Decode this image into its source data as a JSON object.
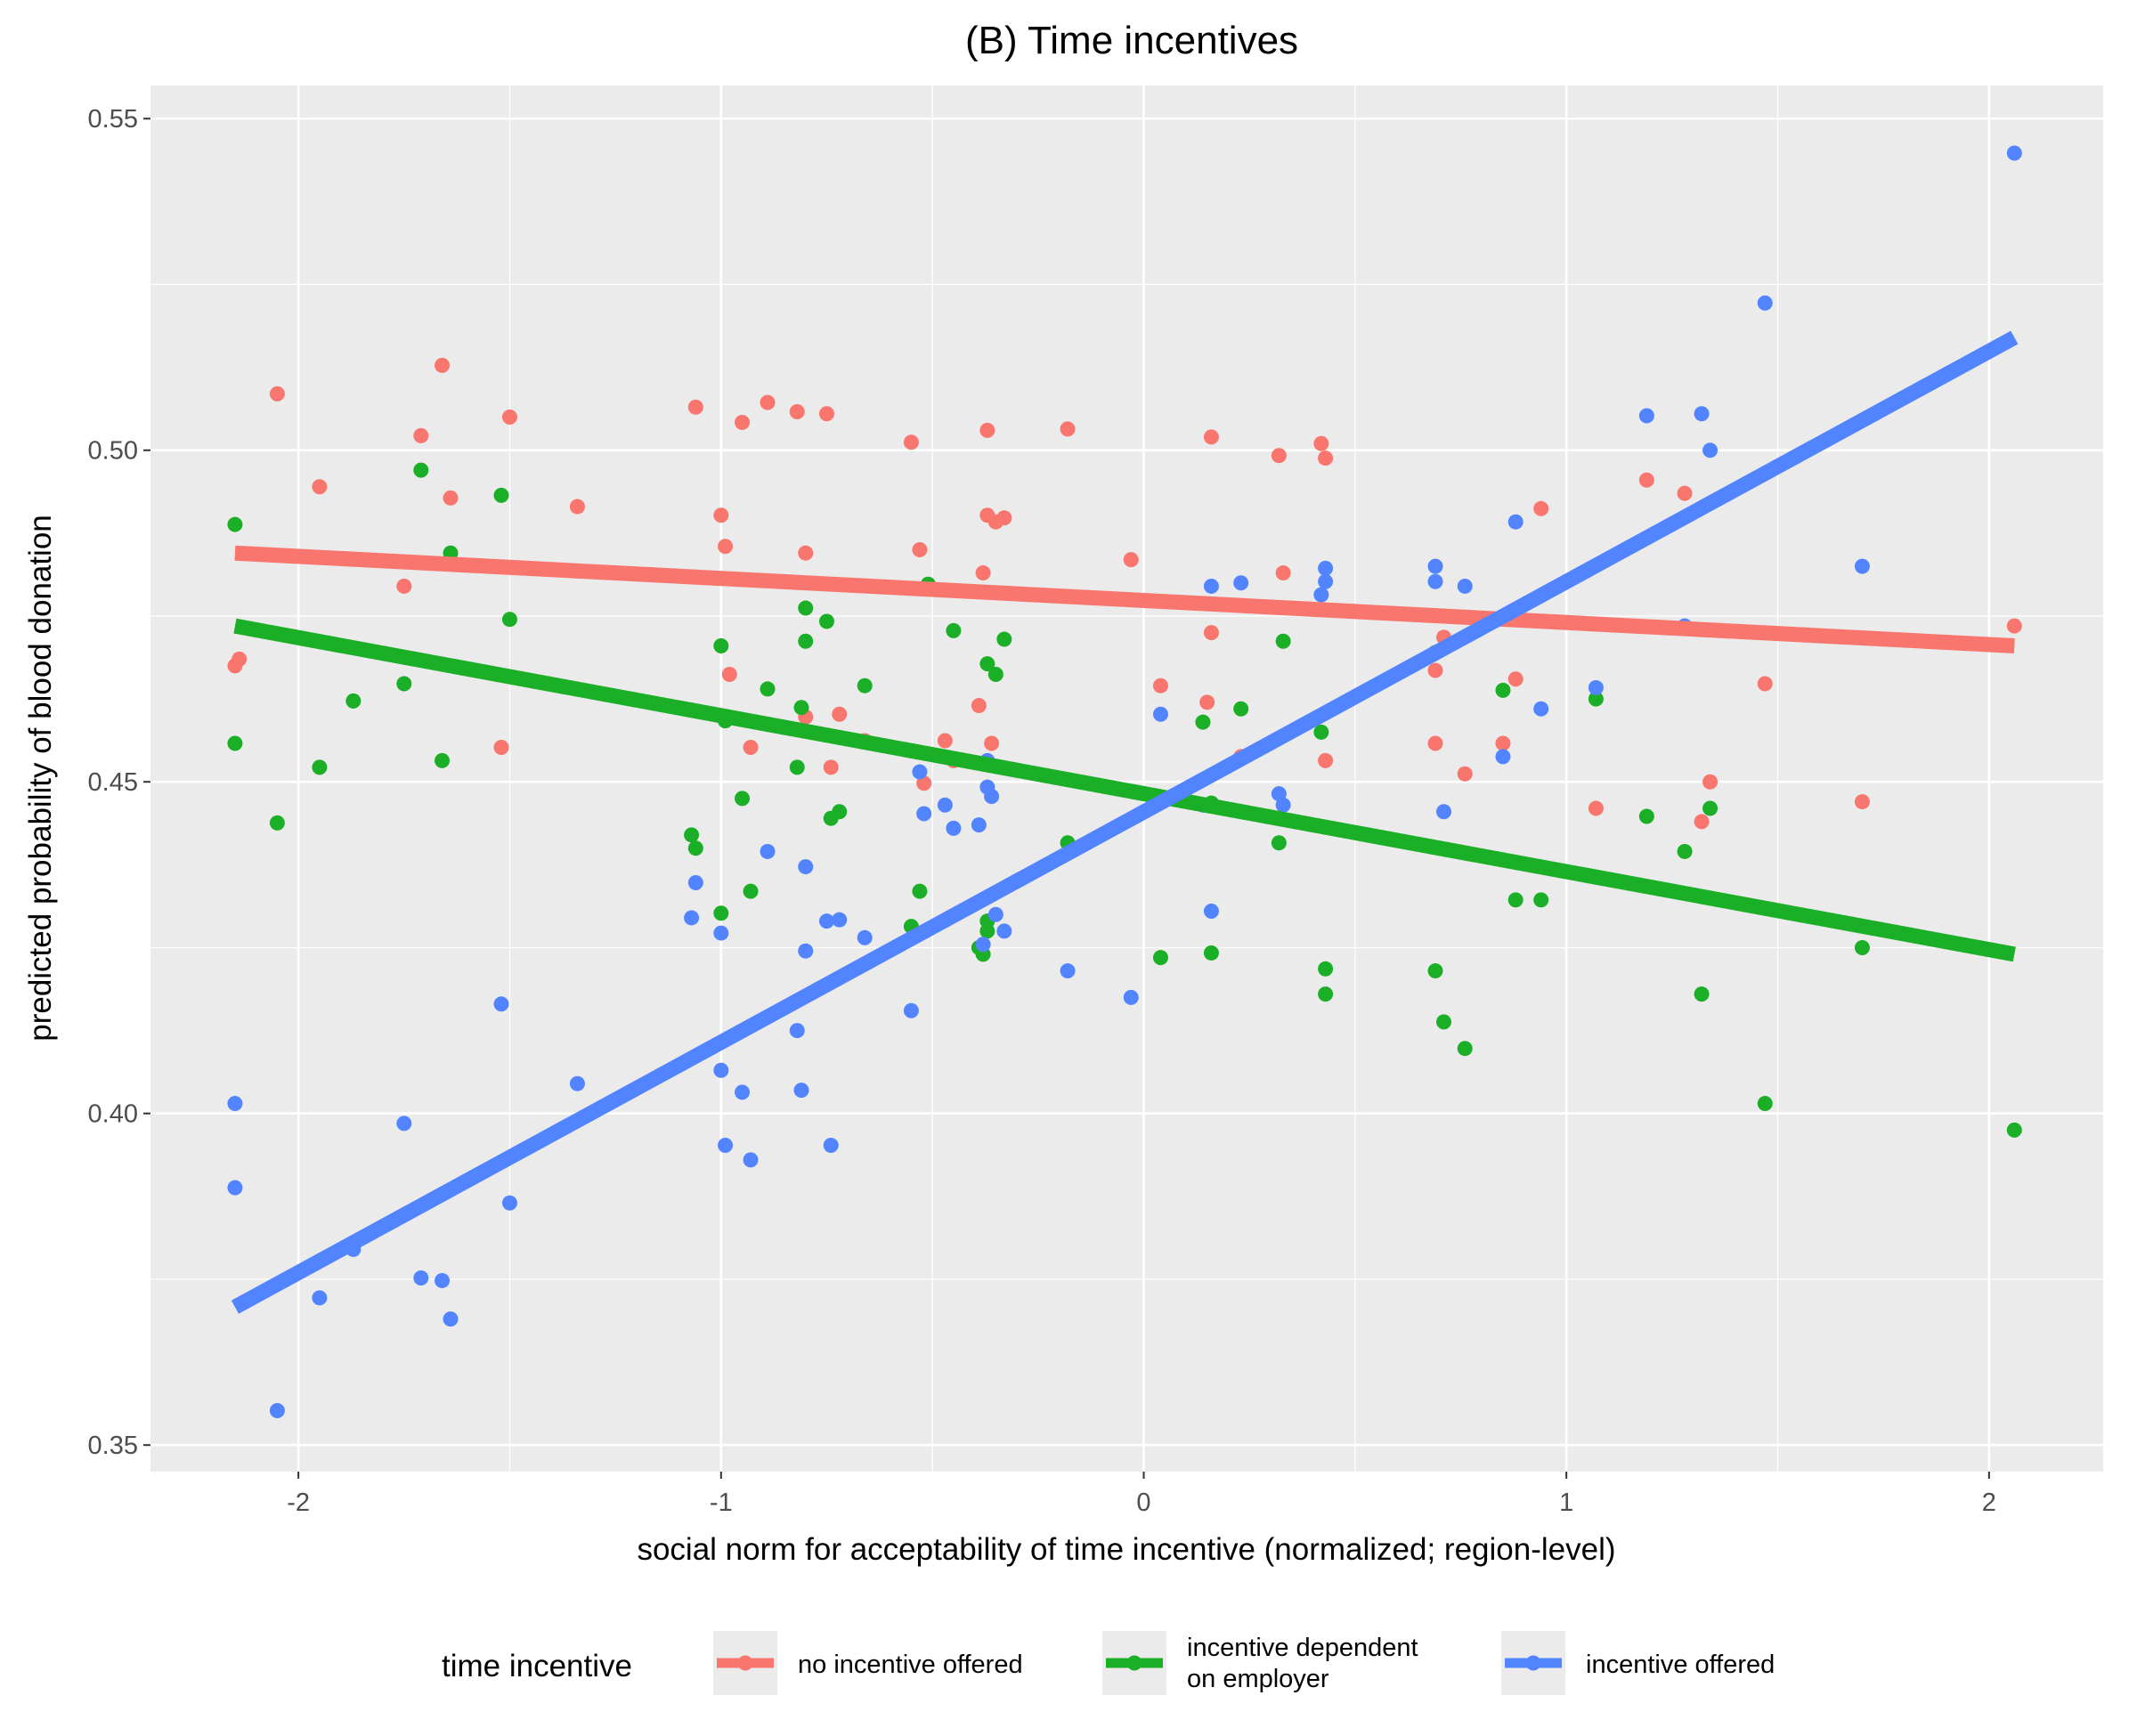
{
  "chart_data": {
    "type": "scatter",
    "title": "(B) Time incentives",
    "xlabel": "social norm for acceptability of time incentive (normalized; region-level)",
    "ylabel": "predicted probability of blood donation",
    "xlim": [
      -2.35,
      2.27
    ],
    "ylim": [
      0.346,
      0.555
    ],
    "x_ticks": [
      -2,
      -1,
      0,
      1,
      2
    ],
    "x_tick_labels": [
      "-2",
      "-1",
      "0",
      "1",
      "2"
    ],
    "y_ticks": [
      0.35,
      0.4,
      0.45,
      0.5,
      0.55
    ],
    "y_tick_labels": [
      "0.35",
      "0.40",
      "0.45",
      "0.50",
      "0.55"
    ],
    "grid": true,
    "legend": {
      "title": "time incentive",
      "position": "bottom",
      "labels": [
        [
          "no incentive offered"
        ],
        [
          "incentive dependent",
          "on employer"
        ],
        [
          "incentive offered"
        ]
      ]
    },
    "series": [
      {
        "name": "no incentive offered",
        "color": "#F8766D",
        "fit_line": {
          "x": [
            -2.15,
            2.06
          ],
          "y": [
            0.4845,
            0.4705
          ]
        },
        "points": [
          [
            -2.15,
            0.4675
          ],
          [
            -2.14,
            0.4685
          ],
          [
            -2.05,
            0.5085
          ],
          [
            -1.95,
            0.4945
          ],
          [
            -1.75,
            0.4795
          ],
          [
            -1.71,
            0.5022
          ],
          [
            -1.66,
            0.5128
          ],
          [
            -1.64,
            0.4928
          ],
          [
            -1.52,
            0.4552
          ],
          [
            -1.5,
            0.505
          ],
          [
            -1.34,
            0.4915
          ],
          [
            -1.07,
            0.4608
          ],
          [
            -1.06,
            0.5065
          ],
          [
            -1.0,
            0.4902
          ],
          [
            -0.99,
            0.4855
          ],
          [
            -0.98,
            0.4662
          ],
          [
            -0.95,
            0.5042
          ],
          [
            -0.93,
            0.4552
          ],
          [
            -0.89,
            0.5072
          ],
          [
            -0.82,
            0.5058
          ],
          [
            -0.8,
            0.4845
          ],
          [
            -0.8,
            0.4598
          ],
          [
            -0.75,
            0.5055
          ],
          [
            -0.74,
            0.4522
          ],
          [
            -0.72,
            0.4602
          ],
          [
            -0.66,
            0.4562
          ],
          [
            -0.55,
            0.5012
          ],
          [
            -0.53,
            0.485
          ],
          [
            -0.52,
            0.4498
          ],
          [
            -0.47,
            0.4562
          ],
          [
            -0.45,
            0.4532
          ],
          [
            -0.39,
            0.4615
          ],
          [
            -0.38,
            0.4815
          ],
          [
            -0.37,
            0.503
          ],
          [
            -0.37,
            0.4902
          ],
          [
            -0.36,
            0.4558
          ],
          [
            -0.35,
            0.4892
          ],
          [
            -0.33,
            0.4898
          ],
          [
            -0.18,
            0.5032
          ],
          [
            -0.03,
            0.4835
          ],
          [
            0.04,
            0.4645
          ],
          [
            0.15,
            0.462
          ],
          [
            0.16,
            0.502
          ],
          [
            0.16,
            0.4725
          ],
          [
            0.23,
            0.4538
          ],
          [
            0.32,
            0.4992
          ],
          [
            0.33,
            0.4815
          ],
          [
            0.42,
            0.501
          ],
          [
            0.43,
            0.4988
          ],
          [
            0.43,
            0.4532
          ],
          [
            0.69,
            0.4668
          ],
          [
            0.69,
            0.4558
          ],
          [
            0.71,
            0.4718
          ],
          [
            0.76,
            0.4512
          ],
          [
            0.85,
            0.4558
          ],
          [
            0.88,
            0.4655
          ],
          [
            0.94,
            0.4912
          ],
          [
            1.07,
            0.446
          ],
          [
            1.19,
            0.4955
          ],
          [
            1.28,
            0.4935
          ],
          [
            1.32,
            0.444
          ],
          [
            1.34,
            0.45
          ],
          [
            1.47,
            0.4648
          ],
          [
            1.7,
            0.447
          ],
          [
            2.06,
            0.4735
          ]
        ]
      },
      {
        "name": "incentive dependent on employer",
        "color": "#1BAF27",
        "fit_line": {
          "x": [
            -2.15,
            2.06
          ],
          "y": [
            0.4735,
            0.424
          ]
        },
        "points": [
          [
            -2.15,
            0.4888
          ],
          [
            -2.15,
            0.4558
          ],
          [
            -2.05,
            0.4438
          ],
          [
            -1.95,
            0.4522
          ],
          [
            -1.87,
            0.4622
          ],
          [
            -1.75,
            0.4648
          ],
          [
            -1.71,
            0.497
          ],
          [
            -1.66,
            0.4532
          ],
          [
            -1.64,
            0.4845
          ],
          [
            -1.52,
            0.4932
          ],
          [
            -1.5,
            0.4745
          ],
          [
            -1.34,
            0.4818
          ],
          [
            -1.07,
            0.442
          ],
          [
            -1.06,
            0.44
          ],
          [
            -1.0,
            0.4302
          ],
          [
            -1.0,
            0.4705
          ],
          [
            -0.99,
            0.4592
          ],
          [
            -0.95,
            0.4475
          ],
          [
            -0.93,
            0.4335
          ],
          [
            -0.89,
            0.464
          ],
          [
            -0.82,
            0.4522
          ],
          [
            -0.81,
            0.4612
          ],
          [
            -0.8,
            0.4762
          ],
          [
            -0.8,
            0.4712
          ],
          [
            -0.75,
            0.4742
          ],
          [
            -0.74,
            0.4445
          ],
          [
            -0.72,
            0.4455
          ],
          [
            -0.66,
            0.4645
          ],
          [
            -0.55,
            0.4282
          ],
          [
            -0.53,
            0.4335
          ],
          [
            -0.51,
            0.4798
          ],
          [
            -0.45,
            0.4728
          ],
          [
            -0.39,
            0.425
          ],
          [
            -0.38,
            0.424
          ],
          [
            -0.37,
            0.429
          ],
          [
            -0.37,
            0.4275
          ],
          [
            -0.37,
            0.4678
          ],
          [
            -0.35,
            0.4662
          ],
          [
            -0.33,
            0.4715
          ],
          [
            -0.18,
            0.4408
          ],
          [
            0.04,
            0.4235
          ],
          [
            0.14,
            0.459
          ],
          [
            0.16,
            0.4468
          ],
          [
            0.16,
            0.4242
          ],
          [
            0.23,
            0.461
          ],
          [
            0.32,
            0.4408
          ],
          [
            0.33,
            0.4712
          ],
          [
            0.42,
            0.4575
          ],
          [
            0.43,
            0.4218
          ],
          [
            0.43,
            0.418
          ],
          [
            0.69,
            0.4695
          ],
          [
            0.69,
            0.4215
          ],
          [
            0.71,
            0.4138
          ],
          [
            0.76,
            0.4098
          ],
          [
            0.85,
            0.4638
          ],
          [
            0.88,
            0.4322
          ],
          [
            0.94,
            0.4322
          ],
          [
            1.07,
            0.4625
          ],
          [
            1.19,
            0.4448
          ],
          [
            1.28,
            0.4395
          ],
          [
            1.32,
            0.418
          ],
          [
            1.34,
            0.446
          ],
          [
            1.47,
            0.4015
          ],
          [
            1.7,
            0.425
          ],
          [
            2.06,
            0.3975
          ]
        ]
      },
      {
        "name": "incentive offered",
        "color": "#5384FF",
        "fit_line": {
          "x": [
            -2.15,
            2.06
          ],
          "y": [
            0.3708,
            0.517
          ]
        },
        "points": [
          [
            -2.15,
            0.4015
          ],
          [
            -2.15,
            0.3888
          ],
          [
            -2.05,
            0.3552
          ],
          [
            -1.95,
            0.3722
          ],
          [
            -1.87,
            0.3795
          ],
          [
            -1.75,
            0.3985
          ],
          [
            -1.71,
            0.3752
          ],
          [
            -1.66,
            0.3748
          ],
          [
            -1.64,
            0.369
          ],
          [
            -1.52,
            0.4165
          ],
          [
            -1.5,
            0.3865
          ],
          [
            -1.34,
            0.4045
          ],
          [
            -1.07,
            0.4295
          ],
          [
            -1.06,
            0.4348
          ],
          [
            -1.0,
            0.4272
          ],
          [
            -1.0,
            0.4065
          ],
          [
            -0.99,
            0.3952
          ],
          [
            -0.95,
            0.4032
          ],
          [
            -0.93,
            0.393
          ],
          [
            -0.89,
            0.4395
          ],
          [
            -0.82,
            0.4125
          ],
          [
            -0.81,
            0.4035
          ],
          [
            -0.8,
            0.4372
          ],
          [
            -0.8,
            0.4245
          ],
          [
            -0.75,
            0.429
          ],
          [
            -0.74,
            0.3952
          ],
          [
            -0.72,
            0.4292
          ],
          [
            -0.66,
            0.4265
          ],
          [
            -0.55,
            0.4155
          ],
          [
            -0.53,
            0.4515
          ],
          [
            -0.52,
            0.4452
          ],
          [
            -0.47,
            0.4465
          ],
          [
            -0.45,
            0.443
          ],
          [
            -0.39,
            0.4435
          ],
          [
            -0.38,
            0.4255
          ],
          [
            -0.37,
            0.4492
          ],
          [
            -0.37,
            0.4532
          ],
          [
            -0.36,
            0.4478
          ],
          [
            -0.35,
            0.43
          ],
          [
            -0.33,
            0.4275
          ],
          [
            -0.18,
            0.4215
          ],
          [
            -0.03,
            0.4175
          ],
          [
            0.04,
            0.4602
          ],
          [
            0.14,
            0.4465
          ],
          [
            0.16,
            0.4795
          ],
          [
            0.16,
            0.4305
          ],
          [
            0.23,
            0.48
          ],
          [
            0.32,
            0.4482
          ],
          [
            0.33,
            0.4465
          ],
          [
            0.42,
            0.4782
          ],
          [
            0.43,
            0.4802
          ],
          [
            0.43,
            0.4822
          ],
          [
            0.69,
            0.4825
          ],
          [
            0.69,
            0.4802
          ],
          [
            0.71,
            0.4455
          ],
          [
            0.76,
            0.4795
          ],
          [
            0.85,
            0.4538
          ],
          [
            0.88,
            0.4892
          ],
          [
            0.94,
            0.461
          ],
          [
            1.07,
            0.4642
          ],
          [
            1.19,
            0.5052
          ],
          [
            1.28,
            0.4735
          ],
          [
            1.32,
            0.5055
          ],
          [
            1.34,
            0.5
          ],
          [
            1.47,
            0.5222
          ],
          [
            1.7,
            0.4825
          ],
          [
            2.06,
            0.5448
          ]
        ]
      }
    ]
  }
}
